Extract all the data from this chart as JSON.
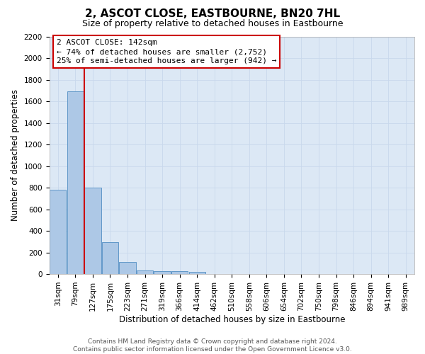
{
  "title": "2, ASCOT CLOSE, EASTBOURNE, BN20 7HL",
  "subtitle": "Size of property relative to detached houses in Eastbourne",
  "xlabel": "Distribution of detached houses by size in Eastbourne",
  "ylabel": "Number of detached properties",
  "footer_line1": "Contains HM Land Registry data © Crown copyright and database right 2024.",
  "footer_line2": "Contains public sector information licensed under the Open Government Licence v3.0.",
  "bar_labels": [
    "31sqm",
    "79sqm",
    "127sqm",
    "175sqm",
    "223sqm",
    "271sqm",
    "319sqm",
    "366sqm",
    "414sqm",
    "462sqm",
    "510sqm",
    "558sqm",
    "606sqm",
    "654sqm",
    "702sqm",
    "750sqm",
    "798sqm",
    "846sqm",
    "894sqm",
    "941sqm",
    "989sqm"
  ],
  "bar_values": [
    780,
    1690,
    800,
    295,
    110,
    35,
    30,
    30,
    20,
    0,
    0,
    0,
    0,
    0,
    0,
    0,
    0,
    0,
    0,
    0,
    0
  ],
  "bar_color": "#adc8e6",
  "bar_edge_color": "#6098c8",
  "ylim": [
    0,
    2200
  ],
  "yticks": [
    0,
    200,
    400,
    600,
    800,
    1000,
    1200,
    1400,
    1600,
    1800,
    2000,
    2200
  ],
  "vline_color": "#cc0000",
  "vline_pos": 1.5,
  "annotation_title": "2 ASCOT CLOSE: 142sqm",
  "annotation_line1": "← 74% of detached houses are smaller (2,752)",
  "annotation_line2": "25% of semi-detached houses are larger (942) →",
  "grid_color": "#c8d8ec",
  "background_color": "#dce8f5",
  "title_fontsize": 11,
  "subtitle_fontsize": 9,
  "axis_label_fontsize": 8.5,
  "tick_fontsize": 7.5,
  "annotation_fontsize": 8,
  "footer_fontsize": 6.5
}
